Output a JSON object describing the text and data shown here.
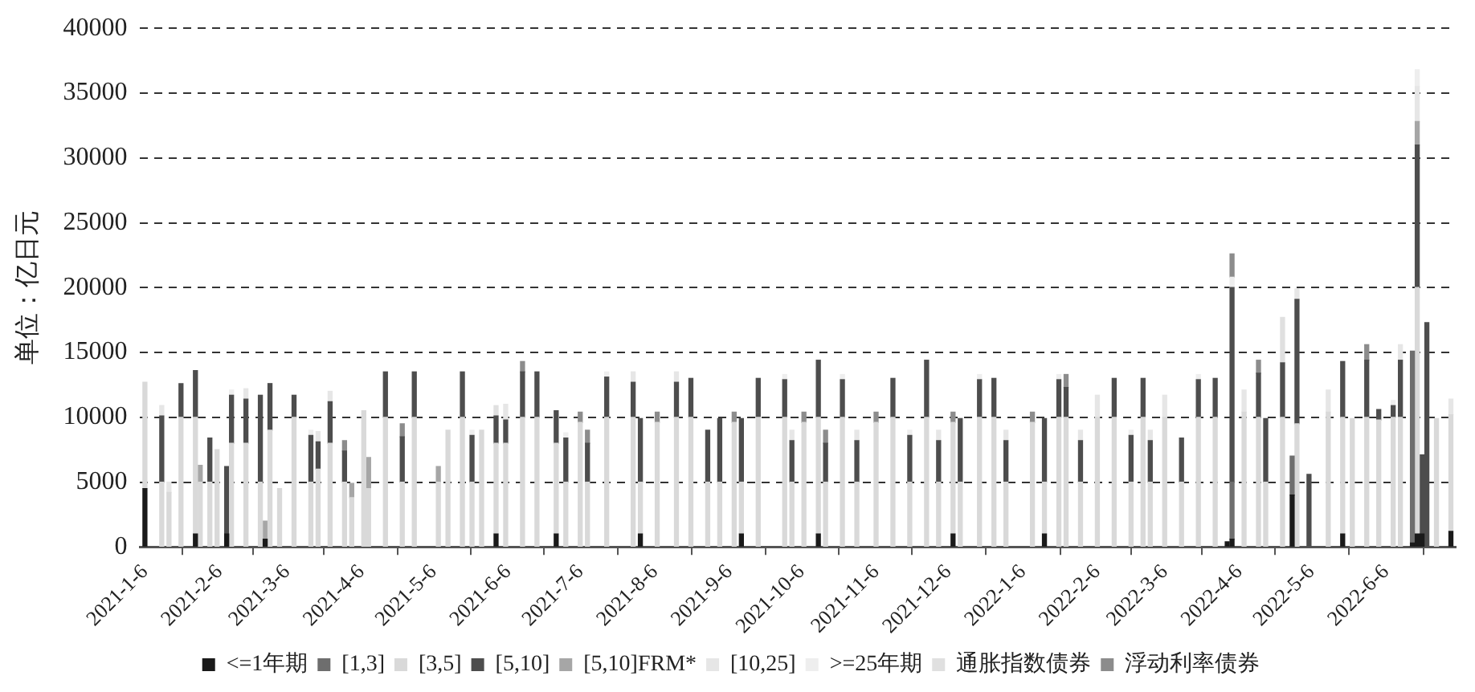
{
  "chart_data": {
    "type": "bar",
    "stacked": true,
    "ylabel": "单位：亿日元",
    "ylim": [
      0,
      40000
    ],
    "yticks": [
      0,
      5000,
      10000,
      15000,
      20000,
      25000,
      30000,
      35000,
      40000
    ],
    "xlim": [
      "2021-01-04",
      "2022-07-05"
    ],
    "xticks": [
      {
        "value": "2021-01-06",
        "label": "2021-1-6"
      },
      {
        "value": "2021-02-06",
        "label": "2021-2-6"
      },
      {
        "value": "2021-03-06",
        "label": "2021-3-6"
      },
      {
        "value": "2021-04-06",
        "label": "2021-4-6"
      },
      {
        "value": "2021-05-06",
        "label": "2021-5-6"
      },
      {
        "value": "2021-06-06",
        "label": "2021-6-6"
      },
      {
        "value": "2021-07-06",
        "label": "2021-7-6"
      },
      {
        "value": "2021-08-06",
        "label": "2021-8-6"
      },
      {
        "value": "2021-09-06",
        "label": "2021-9-6"
      },
      {
        "value": "2021-10-06",
        "label": "2021-10-6"
      },
      {
        "value": "2021-11-06",
        "label": "2021-11-6"
      },
      {
        "value": "2021-12-06",
        "label": "2021-12-6"
      },
      {
        "value": "2022-01-06",
        "label": "2022-1-6"
      },
      {
        "value": "2022-02-06",
        "label": "2022-2-6"
      },
      {
        "value": "2022-03-06",
        "label": "2022-3-6"
      },
      {
        "value": "2022-04-06",
        "label": "2022-4-6"
      },
      {
        "value": "2022-05-06",
        "label": "2022-5-6"
      },
      {
        "value": "2022-06-06",
        "label": "2022-6-6"
      }
    ],
    "grid": "y",
    "legend": "bottom",
    "x": [
      "2021-01-06",
      "2021-01-13",
      "2021-01-16",
      "2021-01-21",
      "2021-01-27",
      "2021-01-29",
      "2021-02-02",
      "2021-02-05",
      "2021-02-09",
      "2021-02-11",
      "2021-02-17",
      "2021-02-23",
      "2021-02-25",
      "2021-02-27",
      "2021-03-03",
      "2021-03-09",
      "2021-03-16",
      "2021-03-19",
      "2021-03-24",
      "2021-03-30",
      "2021-04-02",
      "2021-04-07",
      "2021-04-09",
      "2021-04-16",
      "2021-04-23",
      "2021-04-28",
      "2021-05-08",
      "2021-05-12",
      "2021-05-18",
      "2021-05-22",
      "2021-05-26",
      "2021-06-01",
      "2021-06-05",
      "2021-06-12",
      "2021-06-18",
      "2021-06-26",
      "2021-06-30",
      "2021-07-06",
      "2021-07-09",
      "2021-07-17",
      "2021-07-28",
      "2021-07-31",
      "2021-08-07",
      "2021-08-15",
      "2021-08-21",
      "2021-08-28",
      "2021-09-02",
      "2021-09-08",
      "2021-09-11",
      "2021-09-18",
      "2021-09-29",
      "2021-10-02",
      "2021-10-07",
      "2021-10-13",
      "2021-10-16",
      "2021-10-23",
      "2021-10-29",
      "2021-11-06",
      "2021-11-13",
      "2021-11-20",
      "2021-11-27",
      "2021-12-02",
      "2021-12-08",
      "2021-12-11",
      "2021-12-19",
      "2021-12-25",
      "2021-12-30",
      "2022-01-10",
      "2022-01-15",
      "2022-01-21",
      "2022-01-24",
      "2022-01-30",
      "2022-02-06",
      "2022-02-13",
      "2022-02-20",
      "2022-02-25",
      "2022-02-28",
      "2022-03-06",
      "2022-03-13",
      "2022-03-20",
      "2022-03-27",
      "2022-04-01",
      "2022-04-03",
      "2022-04-08",
      "2022-04-14",
      "2022-04-17",
      "2022-04-24",
      "2022-04-28",
      "2022-04-30",
      "2022-05-05",
      "2022-05-13",
      "2022-05-19",
      "2022-05-23",
      "2022-05-29",
      "2022-06-03",
      "2022-06-09",
      "2022-06-12",
      "2022-06-17",
      "2022-06-19",
      "2022-06-21",
      "2022-06-23",
      "2022-06-27",
      "2022-07-03"
    ],
    "series": [
      {
        "name": "<=1年期",
        "color": "#1a1a1a",
        "values": [
          4500,
          null,
          null,
          null,
          1000,
          null,
          null,
          null,
          1000,
          null,
          null,
          null,
          600,
          null,
          null,
          null,
          null,
          null,
          null,
          null,
          null,
          null,
          null,
          null,
          null,
          null,
          null,
          null,
          null,
          null,
          null,
          1000,
          null,
          null,
          null,
          1000,
          null,
          null,
          null,
          null,
          null,
          1000,
          null,
          null,
          null,
          null,
          null,
          null,
          1000,
          null,
          null,
          null,
          null,
          1000,
          null,
          null,
          null,
          null,
          null,
          null,
          null,
          null,
          1000,
          null,
          null,
          null,
          null,
          null,
          1000,
          null,
          null,
          null,
          null,
          null,
          null,
          null,
          null,
          null,
          null,
          null,
          null,
          400,
          600,
          null,
          null,
          null,
          null,
          4000,
          null,
          null,
          null,
          1000,
          null,
          null,
          null,
          null,
          null,
          300,
          1000,
          1000,
          null,
          null,
          1200
        ]
      },
      {
        "name": "[1,3]",
        "color": "#6e6e6e",
        "values": [
          null,
          null,
          null,
          null,
          null,
          null,
          null,
          null,
          null,
          null,
          null,
          null,
          null,
          null,
          null,
          null,
          null,
          null,
          null,
          null,
          null,
          null,
          null,
          null,
          null,
          null,
          null,
          null,
          null,
          null,
          null,
          null,
          null,
          null,
          null,
          null,
          null,
          null,
          null,
          null,
          null,
          null,
          null,
          null,
          null,
          null,
          null,
          null,
          null,
          null,
          null,
          null,
          null,
          null,
          null,
          null,
          null,
          null,
          null,
          null,
          null,
          null,
          null,
          null,
          null,
          null,
          null,
          null,
          null,
          null,
          null,
          null,
          null,
          null,
          null,
          null,
          null,
          null,
          null,
          null,
          null,
          null,
          4400,
          null,
          null,
          null,
          null,
          3000,
          null,
          null,
          null,
          null,
          null,
          null,
          null,
          null,
          null,
          14800,
          null,
          null,
          null,
          null,
          null
        ]
      },
      {
        "name": "[3,5]",
        "color": "#d9d9d9",
        "values": [
          8200,
          5000,
          4200,
          10000,
          9000,
          5000,
          5000,
          7500,
          null,
          8000,
          8000,
          5000,
          null,
          9000,
          4500,
          10000,
          5000,
          6000,
          8000,
          5000,
          3800,
          10500,
          4500,
          10000,
          5000,
          10000,
          5000,
          9000,
          10000,
          5000,
          9000,
          7000,
          8000,
          10000,
          10000,
          7000,
          5000,
          9600,
          5000,
          10000,
          10000,
          4000,
          9600,
          10000,
          10000,
          5000,
          5000,
          9600,
          4000,
          10000,
          10000,
          5000,
          9600,
          9000,
          5000,
          10000,
          5000,
          9600,
          10000,
          5000,
          10000,
          5000,
          8600,
          5000,
          10000,
          10000,
          5000,
          9600,
          4000,
          10000,
          10000,
          5000,
          10000,
          10000,
          5000,
          10000,
          5000,
          10000,
          5000,
          10000,
          10000,
          null,
          null,
          10400,
          10000,
          5000,
          10000,
          null,
          9500,
          null,
          10400,
          9000,
          9900,
          10000,
          9800,
          10000,
          10000,
          null,
          19000,
          null,
          null,
          9900,
          9000
        ]
      },
      {
        "name": "[5,10]",
        "color": "#4d4d4d",
        "values": [
          null,
          5100,
          null,
          2600,
          3600,
          null,
          3400,
          null,
          5200,
          3700,
          3400,
          6700,
          null,
          3600,
          null,
          1700,
          3600,
          2100,
          3200,
          2400,
          null,
          null,
          null,
          3500,
          3500,
          3500,
          null,
          null,
          3500,
          3600,
          null,
          2100,
          1800,
          3500,
          3500,
          2500,
          3400,
          null,
          3000,
          3100,
          2700,
          4900,
          null,
          2700,
          3000,
          4000,
          4900,
          null,
          4900,
          3000,
          2900,
          3200,
          null,
          4400,
          3000,
          2900,
          3200,
          null,
          3000,
          3600,
          4400,
          3200,
          null,
          4900,
          2900,
          3000,
          3200,
          null,
          4900,
          2900,
          2300,
          3200,
          null,
          3000,
          3600,
          3000,
          3200,
          null,
          3400,
          2900,
          3000,
          null,
          15000,
          null,
          3400,
          4900,
          4200,
          null,
          9600,
          5600,
          null,
          4300,
          null,
          4400,
          800,
          900,
          4400,
          null,
          11000,
          6100,
          17300,
          null,
          null
        ]
      },
      {
        "name": "[5,10]FRM*",
        "color": "#a6a6a6",
        "values": [
          null,
          null,
          null,
          null,
          null,
          1300,
          null,
          null,
          null,
          null,
          null,
          null,
          1400,
          null,
          null,
          null,
          null,
          null,
          null,
          null,
          1100,
          null,
          2400,
          null,
          null,
          null,
          1200,
          null,
          null,
          null,
          null,
          null,
          null,
          null,
          null,
          null,
          null,
          null,
          null,
          null,
          null,
          null,
          null,
          null,
          null,
          null,
          null,
          null,
          null,
          null,
          null,
          null,
          null,
          null,
          null,
          null,
          null,
          null,
          null,
          null,
          null,
          null,
          null,
          null,
          null,
          null,
          null,
          null,
          null,
          null,
          null,
          null,
          null,
          null,
          null,
          null,
          null,
          null,
          null,
          null,
          null,
          null,
          null,
          null,
          null,
          null,
          null,
          null,
          null,
          null,
          null,
          null,
          null,
          null,
          null,
          null,
          null,
          null,
          1800,
          null,
          null,
          null,
          null
        ]
      },
      {
        "name": "[10,25]",
        "color": "#e6e6e6",
        "values": [
          null,
          800,
          800,
          null,
          null,
          null,
          null,
          null,
          null,
          null,
          800,
          null,
          null,
          null,
          null,
          null,
          null,
          800,
          800,
          null,
          null,
          null,
          null,
          null,
          null,
          null,
          null,
          null,
          null,
          null,
          null,
          null,
          1200,
          null,
          null,
          null,
          null,
          null,
          null,
          null,
          800,
          null,
          null,
          800,
          null,
          null,
          null,
          null,
          null,
          null,
          null,
          800,
          null,
          null,
          null,
          null,
          800,
          null,
          null,
          null,
          null,
          800,
          null,
          null,
          null,
          null,
          800,
          null,
          null,
          null,
          null,
          800,
          1700,
          null,
          null,
          null,
          800,
          1700,
          null,
          null,
          null,
          null,
          null,
          1700,
          null,
          null,
          null,
          null,
          800,
          null,
          1700,
          null,
          null,
          null,
          null,
          null,
          1200,
          null,
          2700,
          null,
          null,
          null,
          1200
        ]
      },
      {
        "name": ">=25年期",
        "color": "#eeeeee",
        "values": [
          null,
          null,
          null,
          null,
          null,
          null,
          null,
          null,
          null,
          400,
          null,
          null,
          null,
          null,
          null,
          null,
          400,
          null,
          null,
          null,
          null,
          null,
          null,
          null,
          null,
          null,
          null,
          null,
          null,
          400,
          null,
          null,
          null,
          null,
          null,
          null,
          400,
          null,
          null,
          400,
          null,
          null,
          null,
          null,
          null,
          null,
          null,
          null,
          null,
          null,
          400,
          null,
          null,
          null,
          null,
          400,
          null,
          null,
          null,
          400,
          null,
          null,
          null,
          null,
          400,
          null,
          null,
          null,
          null,
          400,
          null,
          null,
          null,
          null,
          400,
          null,
          null,
          null,
          null,
          400,
          null,
          null,
          800,
          null,
          null,
          null,
          null,
          null,
          null,
          null,
          null,
          null,
          null,
          null,
          null,
          400,
          null,
          null,
          1300,
          null,
          null,
          null,
          null
        ]
      },
      {
        "name": "通胀指数债券",
        "color": "#e0e0e0",
        "values": [
          null,
          null,
          null,
          null,
          null,
          null,
          null,
          null,
          null,
          null,
          null,
          null,
          null,
          null,
          null,
          null,
          null,
          null,
          null,
          null,
          null,
          null,
          null,
          null,
          null,
          null,
          null,
          null,
          null,
          null,
          null,
          800,
          null,
          null,
          null,
          null,
          null,
          null,
          null,
          null,
          null,
          null,
          null,
          null,
          null,
          null,
          null,
          null,
          null,
          null,
          null,
          null,
          null,
          null,
          null,
          null,
          null,
          null,
          null,
          null,
          null,
          null,
          null,
          null,
          null,
          null,
          null,
          null,
          null,
          null,
          null,
          null,
          null,
          null,
          null,
          null,
          null,
          null,
          null,
          null,
          null,
          null,
          null,
          null,
          null,
          null,
          3500,
          null,
          null,
          null,
          null,
          null,
          null,
          null,
          null,
          null,
          null,
          null,
          null,
          null,
          null,
          null,
          null
        ]
      },
      {
        "name": "浮动利率债券",
        "color": "#8c8c8c",
        "values": [
          null,
          null,
          null,
          null,
          null,
          null,
          null,
          null,
          null,
          null,
          null,
          null,
          null,
          null,
          null,
          null,
          null,
          null,
          null,
          800,
          null,
          null,
          null,
          null,
          1000,
          null,
          null,
          null,
          null,
          null,
          null,
          null,
          null,
          800,
          null,
          null,
          null,
          800,
          1000,
          null,
          null,
          null,
          800,
          null,
          null,
          null,
          null,
          800,
          null,
          null,
          null,
          null,
          800,
          null,
          1000,
          null,
          null,
          800,
          null,
          null,
          null,
          null,
          800,
          null,
          null,
          null,
          null,
          800,
          null,
          null,
          1000,
          null,
          null,
          null,
          null,
          null,
          null,
          null,
          null,
          null,
          null,
          null,
          1800,
          null,
          1000,
          null,
          null,
          null,
          null,
          null,
          null,
          null,
          null,
          1200,
          null,
          null,
          null,
          null,
          null,
          null,
          null,
          null,
          null
        ]
      }
    ]
  }
}
